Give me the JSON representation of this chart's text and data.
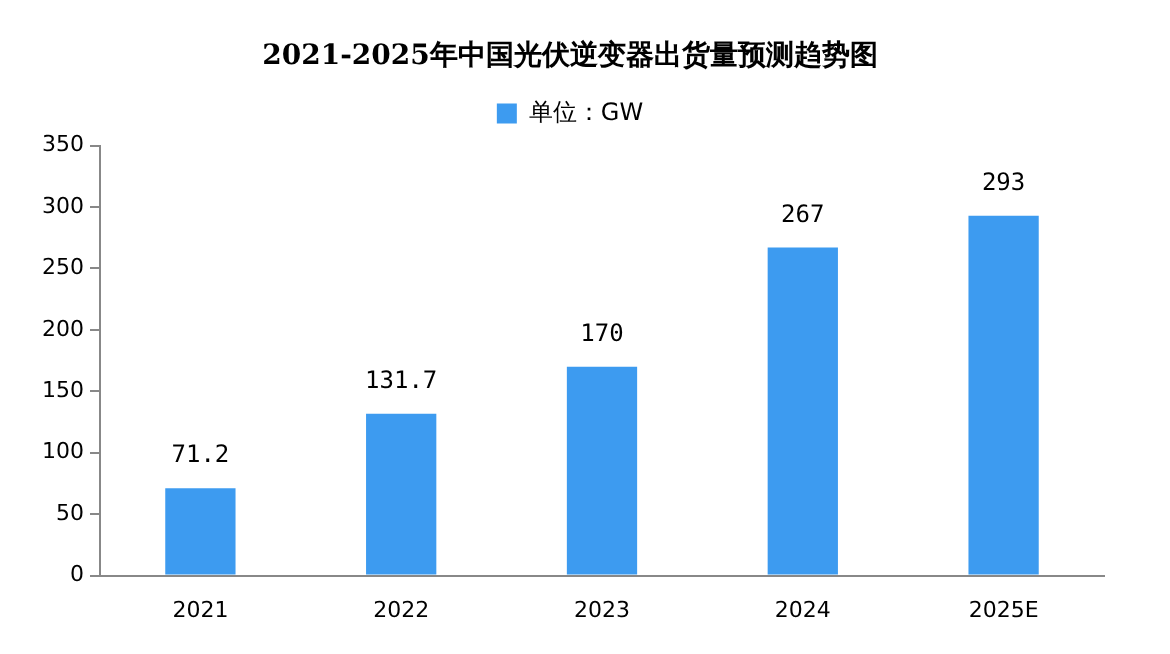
{
  "chart_data": {
    "type": "bar",
    "title": "2021-2025年中国光伏逆变器出货量预测趋势图",
    "categories": [
      "2021",
      "2022",
      "2023",
      "2024",
      "2025E"
    ],
    "series": [
      {
        "name": "单位：GW",
        "color": "#3d9bf0",
        "values": [
          71.2,
          131.7,
          170,
          267,
          293
        ]
      }
    ],
    "ylim": [
      0,
      350
    ],
    "yticks": [
      0,
      50,
      100,
      150,
      200,
      250,
      300,
      350
    ],
    "grid": false,
    "legend": "top",
    "data_labels": true
  }
}
